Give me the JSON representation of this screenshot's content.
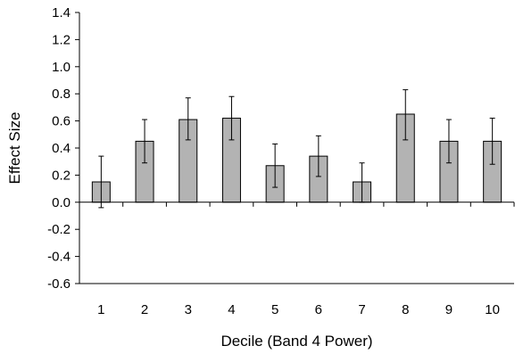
{
  "chart_data": {
    "type": "bar",
    "title": "",
    "xlabel": "Decile (Band 4 Power)",
    "ylabel": "Effect Size",
    "categories": [
      "1",
      "2",
      "3",
      "4",
      "5",
      "6",
      "7",
      "8",
      "9",
      "10"
    ],
    "values": [
      0.15,
      0.45,
      0.61,
      0.62,
      0.27,
      0.34,
      0.15,
      0.65,
      0.45,
      0.45
    ],
    "error_lower": [
      0.19,
      0.16,
      0.15,
      0.16,
      0.16,
      0.15,
      0.15,
      0.19,
      0.16,
      0.17
    ],
    "error_upper": [
      0.19,
      0.16,
      0.16,
      0.16,
      0.16,
      0.15,
      0.14,
      0.18,
      0.16,
      0.17
    ],
    "ylim": [
      -0.6,
      1.4
    ],
    "yticks": [
      1.4,
      1.2,
      1.0,
      0.8,
      0.6,
      0.4,
      0.2,
      0.0,
      -0.2,
      -0.4,
      -0.6
    ],
    "ytick_labels": [
      "1.4",
      "1.2",
      "1.0",
      "0.8",
      "0.6",
      "0.4",
      "0.2",
      "0.0",
      "-0.2",
      "-0.4",
      "-0.6"
    ],
    "grid": false,
    "legend": "none",
    "bar_color": "#b3b3b3",
    "bar_edge_color": "#000000"
  }
}
